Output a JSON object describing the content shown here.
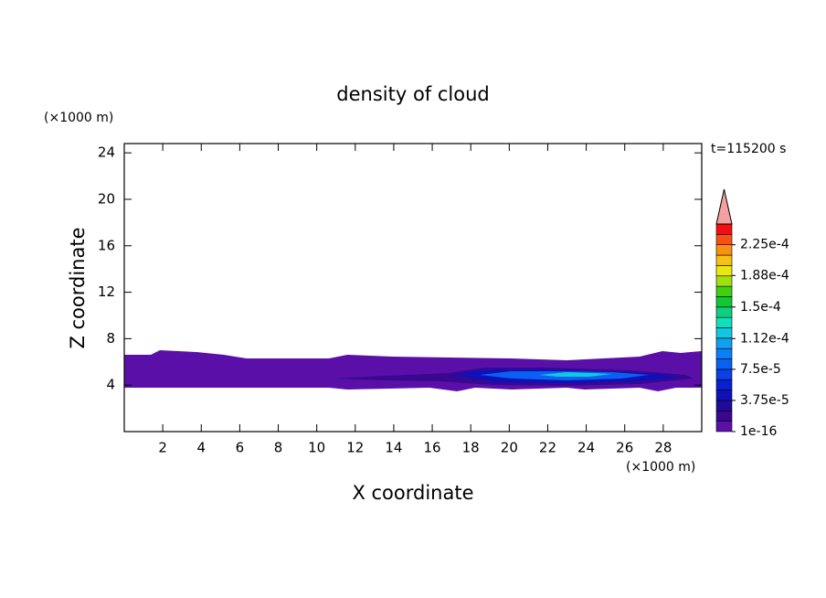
{
  "chart_data": {
    "type": "contour",
    "title": "density of cloud",
    "xlabel": "X coordinate",
    "ylabel": "Z coordinate",
    "xunit": "(×1000 m)",
    "yunit": "(×1000 m)",
    "time_label": "t=115200 s",
    "xlim": [
      0,
      30
    ],
    "xticks": [
      2,
      4,
      6,
      8,
      10,
      12,
      14,
      16,
      18,
      20,
      22,
      24,
      26,
      28
    ],
    "ylim": [
      0,
      24.8
    ],
    "yticks": [
      4,
      8,
      12,
      16,
      20,
      24
    ],
    "clim": [
      0,
      0.00025
    ],
    "cticks": [
      {
        "value": 1e-16,
        "label": "1e-16"
      },
      {
        "value": 3.75e-05,
        "label": "3.75e-5"
      },
      {
        "value": 7.5e-05,
        "label": "7.5e-5"
      },
      {
        "value": 0.000112,
        "label": "1.12e-4"
      },
      {
        "value": 0.00015,
        "label": "1.5e-4"
      },
      {
        "value": 0.000188,
        "label": "1.88e-4"
      },
      {
        "value": 0.000225,
        "label": "2.25e-4"
      }
    ],
    "colors": [
      "#5a10a8",
      "#3a0890",
      "#200a9a",
      "#1010b8",
      "#0a20d0",
      "#0a40e8",
      "#0a60f0",
      "#0a80f8",
      "#10a0f0",
      "#10c8e0",
      "#10e0c0",
      "#10d080",
      "#10c830",
      "#40d010",
      "#a0e010",
      "#e8e810",
      "#f8c010",
      "#f89010",
      "#f85010",
      "#f01010"
    ],
    "extend_color": "#f4a0a0"
  }
}
